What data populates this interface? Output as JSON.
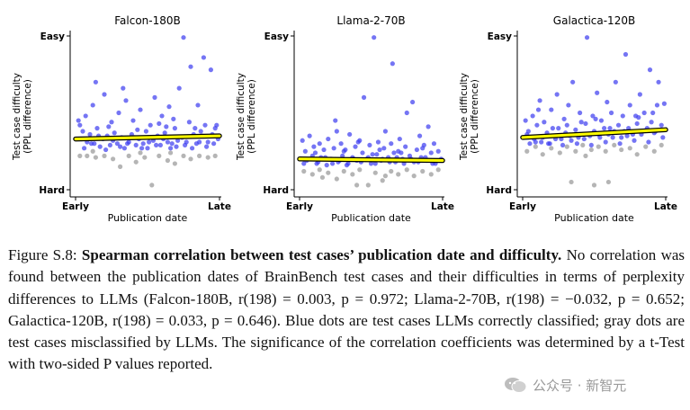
{
  "chart_data": [
    {
      "type": "scatter",
      "title": "Falcon-180B",
      "xlabel": "Publication date",
      "ylabel": [
        "Test case difficulty",
        "(PPL difference)"
      ],
      "x_ticks": [
        "Early",
        "Late"
      ],
      "y_ticks": [
        "Easy",
        "Hard"
      ],
      "trend": {
        "start": 0.33,
        "end": 0.35
      },
      "correct_points": [
        [
          0.02,
          0.45
        ],
        [
          0.03,
          0.42
        ],
        [
          0.05,
          0.38
        ],
        [
          0.07,
          0.48
        ],
        [
          0.08,
          0.31
        ],
        [
          0.1,
          0.36
        ],
        [
          0.12,
          0.55
        ],
        [
          0.13,
          0.3
        ],
        [
          0.15,
          0.4
        ],
        [
          0.17,
          0.28
        ],
        [
          0.19,
          0.33
        ],
        [
          0.2,
          0.62
        ],
        [
          0.22,
          0.35
        ],
        [
          0.24,
          0.29
        ],
        [
          0.25,
          0.44
        ],
        [
          0.27,
          0.37
        ],
        [
          0.29,
          0.3
        ],
        [
          0.3,
          0.5
        ],
        [
          0.32,
          0.34
        ],
        [
          0.34,
          0.27
        ],
        [
          0.35,
          0.58
        ],
        [
          0.37,
          0.31
        ],
        [
          0.39,
          0.36
        ],
        [
          0.4,
          0.45
        ],
        [
          0.42,
          0.29
        ],
        [
          0.44,
          0.33
        ],
        [
          0.45,
          0.52
        ],
        [
          0.47,
          0.3
        ],
        [
          0.49,
          0.38
        ],
        [
          0.5,
          0.27
        ],
        [
          0.52,
          0.42
        ],
        [
          0.54,
          0.32
        ],
        [
          0.55,
          0.6
        ],
        [
          0.57,
          0.35
        ],
        [
          0.59,
          0.29
        ],
        [
          0.6,
          0.48
        ],
        [
          0.62,
          0.37
        ],
        [
          0.64,
          0.31
        ],
        [
          0.65,
          0.54
        ],
        [
          0.67,
          0.3
        ],
        [
          0.69,
          0.4
        ],
        [
          0.7,
          0.28
        ],
        [
          0.72,
          0.66
        ],
        [
          0.74,
          0.34
        ],
        [
          0.75,
          0.99
        ],
        [
          0.77,
          0.31
        ],
        [
          0.79,
          0.44
        ],
        [
          0.8,
          0.8
        ],
        [
          0.82,
          0.36
        ],
        [
          0.84,
          0.3
        ],
        [
          0.85,
          0.55
        ],
        [
          0.87,
          0.38
        ],
        [
          0.89,
          0.86
        ],
        [
          0.9,
          0.42
        ],
        [
          0.92,
          0.31
        ],
        [
          0.94,
          0.78
        ],
        [
          0.95,
          0.36
        ],
        [
          0.97,
          0.4
        ],
        [
          0.99,
          0.33
        ],
        [
          0.06,
          0.27
        ],
        [
          0.11,
          0.3
        ],
        [
          0.16,
          0.35
        ],
        [
          0.21,
          0.26
        ],
        [
          0.26,
          0.32
        ],
        [
          0.31,
          0.28
        ],
        [
          0.36,
          0.3
        ],
        [
          0.41,
          0.34
        ],
        [
          0.46,
          0.27
        ],
        [
          0.51,
          0.31
        ],
        [
          0.56,
          0.29
        ],
        [
          0.61,
          0.33
        ],
        [
          0.66,
          0.27
        ],
        [
          0.71,
          0.32
        ],
        [
          0.76,
          0.29
        ],
        [
          0.81,
          0.27
        ],
        [
          0.86,
          0.31
        ],
        [
          0.91,
          0.28
        ],
        [
          0.96,
          0.3
        ],
        [
          0.14,
          0.7
        ],
        [
          0.33,
          0.66
        ],
        [
          0.58,
          0.43
        ],
        [
          0.68,
          0.46
        ],
        [
          0.88,
          0.35
        ],
        [
          0.04,
          0.33
        ],
        [
          0.23,
          0.41
        ],
        [
          0.43,
          0.39
        ],
        [
          0.63,
          0.41
        ],
        [
          0.83,
          0.4
        ],
        [
          0.98,
          0.42
        ]
      ],
      "wrong_points": [
        [
          0.03,
          0.22
        ],
        [
          0.08,
          0.22
        ],
        [
          0.14,
          0.21
        ],
        [
          0.2,
          0.22
        ],
        [
          0.26,
          0.2
        ],
        [
          0.31,
          0.15
        ],
        [
          0.37,
          0.22
        ],
        [
          0.42,
          0.18
        ],
        [
          0.48,
          0.21
        ],
        [
          0.53,
          0.03
        ],
        [
          0.58,
          0.22
        ],
        [
          0.64,
          0.19
        ],
        [
          0.69,
          0.17
        ],
        [
          0.75,
          0.22
        ],
        [
          0.8,
          0.2
        ],
        [
          0.86,
          0.22
        ],
        [
          0.92,
          0.21
        ],
        [
          0.97,
          0.22
        ],
        [
          0.45,
          0.24
        ],
        [
          0.12,
          0.25
        ],
        [
          0.66,
          0.24
        ]
      ]
    },
    {
      "type": "scatter",
      "title": "Llama-2-70B",
      "xlabel": "Publication date",
      "ylabel": [
        "Test case difficulty",
        "(PPL difference)"
      ],
      "x_ticks": [
        "Early",
        "Late"
      ],
      "y_ticks": [
        "Easy",
        "Hard"
      ],
      "trend": {
        "start": 0.2,
        "end": 0.19
      },
      "correct_points": [
        [
          0.02,
          0.32
        ],
        [
          0.04,
          0.25
        ],
        [
          0.05,
          0.19
        ],
        [
          0.07,
          0.35
        ],
        [
          0.09,
          0.22
        ],
        [
          0.1,
          0.28
        ],
        [
          0.12,
          0.17
        ],
        [
          0.14,
          0.3
        ],
        [
          0.15,
          0.21
        ],
        [
          0.17,
          0.26
        ],
        [
          0.19,
          0.16
        ],
        [
          0.2,
          0.33
        ],
        [
          0.22,
          0.2
        ],
        [
          0.24,
          0.27
        ],
        [
          0.25,
          0.45
        ],
        [
          0.27,
          0.18
        ],
        [
          0.29,
          0.3
        ],
        [
          0.3,
          0.22
        ],
        [
          0.32,
          0.26
        ],
        [
          0.34,
          0.17
        ],
        [
          0.35,
          0.36
        ],
        [
          0.37,
          0.21
        ],
        [
          0.39,
          0.28
        ],
        [
          0.4,
          0.19
        ],
        [
          0.42,
          0.32
        ],
        [
          0.44,
          0.24
        ],
        [
          0.45,
          0.6
        ],
        [
          0.47,
          0.2
        ],
        [
          0.49,
          0.29
        ],
        [
          0.5,
          0.17
        ],
        [
          0.52,
          0.99
        ],
        [
          0.54,
          0.23
        ],
        [
          0.55,
          0.31
        ],
        [
          0.57,
          0.19
        ],
        [
          0.59,
          0.27
        ],
        [
          0.6,
          0.38
        ],
        [
          0.62,
          0.21
        ],
        [
          0.64,
          0.3
        ],
        [
          0.65,
          0.82
        ],
        [
          0.67,
          0.18
        ],
        [
          0.69,
          0.25
        ],
        [
          0.7,
          0.33
        ],
        [
          0.72,
          0.2
        ],
        [
          0.74,
          0.28
        ],
        [
          0.75,
          0.5
        ],
        [
          0.77,
          0.22
        ],
        [
          0.79,
          0.57
        ],
        [
          0.8,
          0.18
        ],
        [
          0.82,
          0.26
        ],
        [
          0.84,
          0.35
        ],
        [
          0.85,
          0.21
        ],
        [
          0.87,
          0.29
        ],
        [
          0.89,
          0.19
        ],
        [
          0.9,
          0.41
        ],
        [
          0.92,
          0.24
        ],
        [
          0.94,
          0.3
        ],
        [
          0.95,
          0.17
        ],
        [
          0.97,
          0.25
        ],
        [
          0.99,
          0.2
        ],
        [
          0.03,
          0.17
        ],
        [
          0.08,
          0.2
        ],
        [
          0.13,
          0.18
        ],
        [
          0.18,
          0.21
        ],
        [
          0.23,
          0.17
        ],
        [
          0.28,
          0.19
        ],
        [
          0.33,
          0.16
        ],
        [
          0.38,
          0.2
        ],
        [
          0.43,
          0.18
        ],
        [
          0.48,
          0.21
        ],
        [
          0.53,
          0.17
        ],
        [
          0.58,
          0.2
        ],
        [
          0.63,
          0.18
        ],
        [
          0.68,
          0.21
        ],
        [
          0.73,
          0.17
        ],
        [
          0.78,
          0.2
        ],
        [
          0.83,
          0.18
        ],
        [
          0.88,
          0.21
        ],
        [
          0.93,
          0.17
        ],
        [
          0.98,
          0.19
        ],
        [
          0.26,
          0.38
        ],
        [
          0.41,
          0.31
        ],
        [
          0.56,
          0.26
        ],
        [
          0.66,
          0.24
        ],
        [
          0.86,
          0.27
        ],
        [
          0.11,
          0.24
        ],
        [
          0.31,
          0.25
        ],
        [
          0.51,
          0.23
        ],
        [
          0.71,
          0.24
        ]
      ],
      "wrong_points": [
        [
          0.03,
          0.12
        ],
        [
          0.09,
          0.1
        ],
        [
          0.14,
          0.13
        ],
        [
          0.2,
          0.11
        ],
        [
          0.26,
          0.07
        ],
        [
          0.31,
          0.12
        ],
        [
          0.37,
          0.1
        ],
        [
          0.42,
          0.13
        ],
        [
          0.48,
          0.03
        ],
        [
          0.53,
          0.11
        ],
        [
          0.58,
          0.06
        ],
        [
          0.64,
          0.12
        ],
        [
          0.69,
          0.1
        ],
        [
          0.75,
          0.13
        ],
        [
          0.8,
          0.09
        ],
        [
          0.86,
          0.12
        ],
        [
          0.92,
          0.1
        ],
        [
          0.97,
          0.13
        ],
        [
          0.4,
          0.03
        ],
        [
          0.6,
          0.09
        ],
        [
          0.16,
          0.08
        ]
      ]
    },
    {
      "type": "scatter",
      "title": "Galactica-120B",
      "xlabel": "Publication date",
      "ylabel": [
        "Test case difficulty",
        "(PPL difference)"
      ],
      "x_ticks": [
        "Early",
        "Late"
      ],
      "y_ticks": [
        "Easy",
        "Hard"
      ],
      "trend": {
        "start": 0.34,
        "end": 0.39
      },
      "correct_points": [
        [
          0.02,
          0.45
        ],
        [
          0.03,
          0.36
        ],
        [
          0.05,
          0.3
        ],
        [
          0.07,
          0.48
        ],
        [
          0.08,
          0.33
        ],
        [
          0.1,
          0.42
        ],
        [
          0.12,
          0.58
        ],
        [
          0.13,
          0.31
        ],
        [
          0.15,
          0.44
        ],
        [
          0.17,
          0.37
        ],
        [
          0.19,
          0.3
        ],
        [
          0.2,
          0.52
        ],
        [
          0.22,
          0.35
        ],
        [
          0.24,
          0.62
        ],
        [
          0.25,
          0.4
        ],
        [
          0.27,
          0.33
        ],
        [
          0.29,
          0.46
        ],
        [
          0.3,
          0.37
        ],
        [
          0.32,
          0.55
        ],
        [
          0.34,
          0.32
        ],
        [
          0.35,
          0.7
        ],
        [
          0.37,
          0.39
        ],
        [
          0.39,
          0.34
        ],
        [
          0.4,
          0.5
        ],
        [
          0.42,
          0.36
        ],
        [
          0.44,
          0.43
        ],
        [
          0.45,
          0.99
        ],
        [
          0.47,
          0.35
        ],
        [
          0.49,
          0.48
        ],
        [
          0.5,
          0.38
        ],
        [
          0.52,
          0.63
        ],
        [
          0.54,
          0.34
        ],
        [
          0.55,
          0.45
        ],
        [
          0.57,
          0.4
        ],
        [
          0.59,
          0.57
        ],
        [
          0.6,
          0.36
        ],
        [
          0.62,
          0.5
        ],
        [
          0.64,
          0.38
        ],
        [
          0.65,
          0.7
        ],
        [
          0.67,
          0.42
        ],
        [
          0.69,
          0.34
        ],
        [
          0.7,
          0.48
        ],
        [
          0.72,
          0.88
        ],
        [
          0.74,
          0.4
        ],
        [
          0.75,
          0.55
        ],
        [
          0.77,
          0.36
        ],
        [
          0.79,
          0.48
        ],
        [
          0.8,
          0.43
        ],
        [
          0.82,
          0.62
        ],
        [
          0.84,
          0.38
        ],
        [
          0.85,
          0.5
        ],
        [
          0.87,
          0.4
        ],
        [
          0.89,
          0.78
        ],
        [
          0.9,
          0.44
        ],
        [
          0.92,
          0.37
        ],
        [
          0.94,
          0.55
        ],
        [
          0.95,
          0.7
        ],
        [
          0.97,
          0.42
        ],
        [
          0.99,
          0.56
        ],
        [
          0.04,
          0.38
        ],
        [
          0.09,
          0.31
        ],
        [
          0.14,
          0.34
        ],
        [
          0.18,
          0.3
        ],
        [
          0.23,
          0.33
        ],
        [
          0.28,
          0.29
        ],
        [
          0.33,
          0.35
        ],
        [
          0.38,
          0.3
        ],
        [
          0.43,
          0.33
        ],
        [
          0.48,
          0.29
        ],
        [
          0.53,
          0.36
        ],
        [
          0.58,
          0.31
        ],
        [
          0.63,
          0.34
        ],
        [
          0.68,
          0.3
        ],
        [
          0.73,
          0.35
        ],
        [
          0.78,
          0.32
        ],
        [
          0.83,
          0.36
        ],
        [
          0.88,
          0.31
        ],
        [
          0.93,
          0.38
        ],
        [
          0.98,
          0.34
        ],
        [
          0.11,
          0.52
        ],
        [
          0.21,
          0.4
        ],
        [
          0.31,
          0.42
        ],
        [
          0.41,
          0.44
        ],
        [
          0.51,
          0.46
        ],
        [
          0.61,
          0.4
        ],
        [
          0.71,
          0.38
        ],
        [
          0.81,
          0.47
        ],
        [
          0.91,
          0.5
        ]
      ],
      "wrong_points": [
        [
          0.03,
          0.25
        ],
        [
          0.09,
          0.28
        ],
        [
          0.14,
          0.23
        ],
        [
          0.2,
          0.27
        ],
        [
          0.26,
          0.24
        ],
        [
          0.31,
          0.28
        ],
        [
          0.37,
          0.25
        ],
        [
          0.42,
          0.29
        ],
        [
          0.48,
          0.26
        ],
        [
          0.53,
          0.28
        ],
        [
          0.58,
          0.25
        ],
        [
          0.64,
          0.29
        ],
        [
          0.69,
          0.26
        ],
        [
          0.75,
          0.27
        ],
        [
          0.8,
          0.23
        ],
        [
          0.86,
          0.28
        ],
        [
          0.92,
          0.25
        ],
        [
          0.97,
          0.29
        ],
        [
          0.34,
          0.05
        ],
        [
          0.5,
          0.03
        ],
        [
          0.6,
          0.05
        ],
        [
          0.44,
          0.22
        ]
      ]
    }
  ],
  "caption": {
    "prefix": "Figure S.8: ",
    "bold": "Spearman correlation between test cases’ publication date and difficulty.",
    "body": " No correlation was found between the publication dates of BrainBench test cases and their difficulties in terms of perplexity differences to LLMs (Falcon-180B, r(198) = 0.003, p = 0.972; Llama-2-70B, r(198) = −0.032, p = 0.652; Galactica-120B, r(198) = 0.033, p = 0.646). Blue dots are test cases LLMs correctly classified; gray dots are test cases misclassified by LLMs. The significance of the correlation coefficients was determined by a t-Test with two-sided P values reported."
  },
  "watermark": {
    "text": "公众号 · 新智元",
    "icon": "wechat-icon"
  },
  "colors": {
    "correct": "#3a3af0",
    "wrong": "#a8a8a8",
    "trend": "#ffff00",
    "trend_outline": "#000000"
  }
}
